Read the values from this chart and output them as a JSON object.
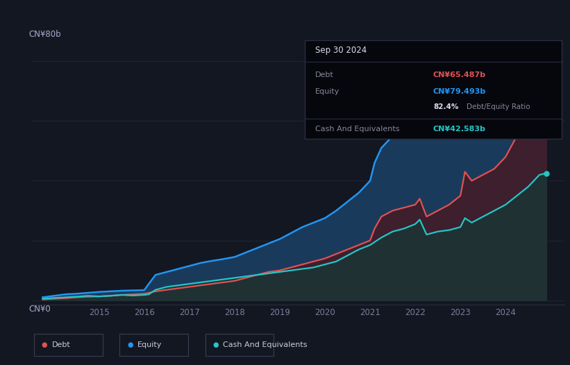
{
  "background_color": "#131722",
  "plot_bg_color": "#131722",
  "ylabel_top": "CN¥80b",
  "ylabel_bottom": "CN¥0",
  "x_ticks": [
    2015,
    2016,
    2017,
    2018,
    2019,
    2020,
    2021,
    2022,
    2023,
    2024
  ],
  "x_min": 2013.5,
  "x_max": 2025.3,
  "y_min": -1.5,
  "y_max": 84,
  "equity_color": "#2196f3",
  "debt_color": "#e05252",
  "cash_color": "#26c6c6",
  "equity_fill": "#1a3a5c",
  "debt_fill": "#3d1f2e",
  "cash_fill": "#1a3535",
  "grid_color": "#222633",
  "tooltip": {
    "date": "Sep 30 2024",
    "debt_label": "Debt",
    "debt_value": "CN¥65.487b",
    "equity_label": "Equity",
    "equity_value": "CN¥79.493b",
    "ratio_value": "82.4%",
    "ratio_label": "Debt/Equity Ratio",
    "cash_label": "Cash And Equivalents",
    "cash_value": "CN¥42.583b"
  },
  "legend": [
    {
      "label": "Debt",
      "color": "#e05252"
    },
    {
      "label": "Equity",
      "color": "#2196f3"
    },
    {
      "label": "Cash And Equivalents",
      "color": "#26c6c6"
    }
  ],
  "equity_x": [
    2013.75,
    2014.0,
    2014.25,
    2014.5,
    2014.75,
    2015.0,
    2015.25,
    2015.5,
    2015.75,
    2016.0,
    2016.1,
    2016.25,
    2016.5,
    2016.75,
    2017.0,
    2017.25,
    2017.5,
    2017.75,
    2018.0,
    2018.25,
    2018.5,
    2018.75,
    2019.0,
    2019.25,
    2019.5,
    2019.75,
    2020.0,
    2020.25,
    2020.5,
    2020.75,
    2021.0,
    2021.1,
    2021.25,
    2021.5,
    2021.75,
    2022.0,
    2022.25,
    2022.5,
    2022.75,
    2023.0,
    2023.25,
    2023.5,
    2023.75,
    2024.0,
    2024.25,
    2024.5,
    2024.75,
    2024.9
  ],
  "equity_y": [
    1.0,
    1.5,
    2.0,
    2.2,
    2.5,
    2.8,
    3.0,
    3.2,
    3.3,
    3.4,
    5.5,
    8.5,
    9.5,
    10.5,
    11.5,
    12.5,
    13.2,
    13.8,
    14.5,
    16.0,
    17.5,
    19.0,
    20.5,
    22.5,
    24.5,
    26.0,
    27.5,
    30.0,
    33.0,
    36.0,
    40.0,
    46.0,
    51.0,
    55.0,
    56.5,
    58.0,
    57.0,
    56.0,
    57.5,
    60.0,
    63.0,
    65.0,
    67.5,
    70.0,
    73.0,
    76.5,
    79.5,
    79.5
  ],
  "debt_x": [
    2013.75,
    2014.0,
    2014.25,
    2014.5,
    2014.75,
    2015.0,
    2015.25,
    2015.5,
    2015.75,
    2016.0,
    2016.1,
    2016.25,
    2016.5,
    2016.75,
    2017.0,
    2017.25,
    2017.5,
    2017.75,
    2018.0,
    2018.25,
    2018.5,
    2018.75,
    2019.0,
    2019.25,
    2019.5,
    2019.75,
    2020.0,
    2020.25,
    2020.5,
    2020.75,
    2021.0,
    2021.1,
    2021.25,
    2021.5,
    2021.75,
    2022.0,
    2022.1,
    2022.25,
    2022.5,
    2022.75,
    2023.0,
    2023.1,
    2023.25,
    2023.5,
    2023.75,
    2024.0,
    2024.25,
    2024.5,
    2024.75,
    2024.9
  ],
  "debt_y": [
    0.3,
    0.5,
    0.7,
    1.0,
    1.2,
    1.3,
    1.5,
    1.8,
    2.0,
    2.2,
    2.5,
    3.0,
    3.5,
    4.0,
    4.5,
    5.0,
    5.5,
    6.0,
    6.5,
    7.5,
    8.5,
    9.5,
    10.0,
    11.0,
    12.0,
    13.0,
    14.0,
    15.5,
    17.0,
    18.5,
    20.0,
    24.0,
    28.0,
    30.0,
    31.0,
    32.0,
    34.0,
    28.0,
    30.0,
    32.0,
    35.0,
    43.0,
    40.0,
    42.0,
    44.0,
    48.0,
    55.0,
    60.0,
    65.5,
    65.5
  ],
  "cash_x": [
    2013.75,
    2014.0,
    2014.25,
    2014.5,
    2014.75,
    2015.0,
    2015.25,
    2015.5,
    2015.75,
    2016.0,
    2016.1,
    2016.25,
    2016.5,
    2016.75,
    2017.0,
    2017.25,
    2017.5,
    2017.75,
    2018.0,
    2018.25,
    2018.5,
    2018.75,
    2019.0,
    2019.25,
    2019.5,
    2019.75,
    2020.0,
    2020.25,
    2020.5,
    2020.75,
    2021.0,
    2021.1,
    2021.25,
    2021.5,
    2021.75,
    2022.0,
    2022.1,
    2022.25,
    2022.5,
    2022.75,
    2023.0,
    2023.1,
    2023.25,
    2023.5,
    2023.75,
    2024.0,
    2024.25,
    2024.5,
    2024.75,
    2024.9
  ],
  "cash_y": [
    0.5,
    0.8,
    1.0,
    1.2,
    1.5,
    1.3,
    1.5,
    1.8,
    1.6,
    1.8,
    2.0,
    3.5,
    4.5,
    5.0,
    5.5,
    6.0,
    6.5,
    7.0,
    7.5,
    8.0,
    8.5,
    9.0,
    9.5,
    10.0,
    10.5,
    11.0,
    12.0,
    13.0,
    15.0,
    17.0,
    18.5,
    19.5,
    21.0,
    23.0,
    24.0,
    25.5,
    27.0,
    22.0,
    23.0,
    23.5,
    24.5,
    27.5,
    26.0,
    28.0,
    30.0,
    32.0,
    35.0,
    38.0,
    42.0,
    42.5
  ]
}
